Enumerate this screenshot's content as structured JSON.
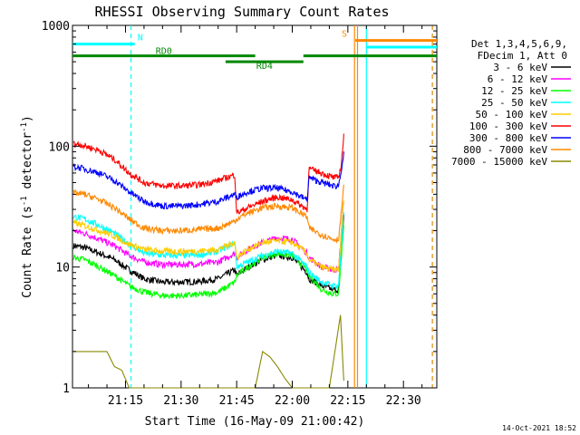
{
  "chart_data": {
    "type": "line",
    "title": "RHESSI Observing Summary Count Rates",
    "xlabel": "Start Time (16-May-09 21:00:42)",
    "ylabel_main": "Count Rate (s",
    "ylabel_sup": "-1",
    "ylabel_mid": " detector",
    "ylabel_sup2": "-1",
    "ylabel_end": ")",
    "yscale": "log",
    "ylim": [
      1,
      1000
    ],
    "xlim_minutes": [
      0.7,
      99.0
    ],
    "x_ticks": [
      {
        "m": 15,
        "label": "21:15"
      },
      {
        "m": 30,
        "label": "21:30"
      },
      {
        "m": 45,
        "label": "21:45"
      },
      {
        "m": 60,
        "label": "22:00"
      },
      {
        "m": 75,
        "label": "22:15"
      },
      {
        "m": 90,
        "label": "22:30"
      }
    ],
    "y_ticks": [
      {
        "v": 1,
        "label": "1"
      },
      {
        "v": 10,
        "label": "10"
      },
      {
        "v": 100,
        "label": "100"
      },
      {
        "v": 1000,
        "label": "1000"
      }
    ],
    "legend_header": [
      "Det 1,3,4,5,6,9,",
      "FDecim 1, Att 0"
    ],
    "legend_placement": "right",
    "timestamp": "14-Oct-2021 18:52",
    "flags": [
      {
        "label": "N",
        "start": 0.7,
        "end": 17.5,
        "level": 700,
        "color": "#00ffff"
      },
      {
        "label": "S",
        "start": 77.0,
        "end": 99.0,
        "level": 750,
        "color": "#ff8800"
      },
      {
        "label": "RD0",
        "start": 0.7,
        "end": 50.0,
        "level": 560,
        "color": "#008800"
      },
      {
        "label": "RD4",
        "start": 42.0,
        "end": 63.0,
        "level": 500,
        "color": "#008800"
      },
      {
        "label": "",
        "start": 63.0,
        "end": 99.0,
        "level": 560,
        "color": "#008800"
      },
      {
        "label": "",
        "start": 80.0,
        "end": 99.0,
        "level": 660,
        "color": "#00ffff"
      }
    ],
    "vlines": [
      {
        "m": 16.5,
        "color": "#00ffff",
        "dashed": true
      },
      {
        "m": 76.8,
        "color": "#ff8800",
        "dashed": false
      },
      {
        "m": 77.6,
        "color": "#ff8800",
        "dashed": false
      },
      {
        "m": 80.0,
        "color": "#00ffff",
        "dashed": false
      },
      {
        "m": 97.8,
        "color": "#00ffff",
        "dashed": true
      },
      {
        "m": 97.8,
        "color": "#ff8800",
        "dashed": true
      }
    ],
    "series": [
      {
        "name": "3 - 6 keV",
        "color": "#000000",
        "x": [
          1,
          4,
          8,
          12,
          16,
          20,
          25,
          30,
          35,
          40,
          44.5,
          45,
          48,
          52,
          56,
          60,
          64,
          64.5,
          68,
          71,
          72.5,
          74
        ],
        "y": [
          15,
          14.5,
          13,
          11.5,
          9.5,
          8,
          7.5,
          7.5,
          7.6,
          8,
          9.5,
          8.5,
          10,
          11.5,
          12.5,
          12,
          9,
          8,
          7,
          6.5,
          6.5,
          30
        ]
      },
      {
        "name": "6 - 12 keV",
        "color": "#ff00ff",
        "x": [
          1,
          4,
          8,
          12,
          16,
          20,
          25,
          30,
          35,
          40,
          44.5,
          45,
          48,
          52,
          56,
          60,
          64,
          64.5,
          68,
          71,
          72.5,
          74
        ],
        "y": [
          20,
          19,
          17,
          15,
          12.5,
          11,
          10.5,
          10.5,
          10.6,
          11,
          13,
          12,
          14,
          16,
          17.5,
          17,
          13,
          12,
          10,
          9.5,
          9.5,
          40
        ]
      },
      {
        "name": "12 - 25 keV",
        "color": "#00ff00",
        "x": [
          1,
          4,
          8,
          12,
          16,
          20,
          25,
          30,
          35,
          40,
          44.5,
          45,
          48,
          52,
          56,
          60,
          64,
          64.5,
          68,
          71,
          72.5,
          74
        ],
        "y": [
          12,
          11.5,
          10,
          8.5,
          7,
          6.2,
          5.8,
          5.8,
          5.9,
          6.2,
          7.5,
          8.5,
          10,
          12,
          13,
          12.5,
          9.5,
          8.5,
          6.5,
          6,
          6,
          25
        ]
      },
      {
        "name": "25 - 50 keV",
        "color": "#00ffff",
        "x": [
          1,
          4,
          8,
          12,
          16,
          20,
          25,
          30,
          35,
          40,
          44.5,
          45,
          48,
          52,
          56,
          60,
          64,
          64.5,
          68,
          71,
          72.5,
          74
        ],
        "y": [
          26,
          25,
          22,
          19,
          15.5,
          13,
          12.5,
          12.5,
          12.6,
          13.5,
          16,
          10,
          11,
          12.5,
          13.5,
          13,
          10,
          9,
          7.5,
          7,
          7,
          32
        ]
      },
      {
        "name": "50 - 100 keV",
        "color": "#ffcc00",
        "x": [
          1,
          4,
          8,
          12,
          16,
          20,
          25,
          30,
          35,
          40,
          44.5,
          45,
          48,
          52,
          56,
          60,
          64,
          64.5,
          68,
          71,
          72.5,
          74
        ],
        "y": [
          23,
          22,
          20,
          18,
          15.5,
          14,
          13.5,
          13.5,
          13.6,
          14,
          16,
          12,
          14,
          16,
          16.5,
          16,
          13,
          11.5,
          10,
          9.5,
          9.5,
          40
        ]
      },
      {
        "name": "100 - 300 keV",
        "color": "#ff0000",
        "x": [
          1,
          3,
          8,
          12,
          16,
          20,
          25,
          30,
          35,
          40,
          44.5,
          45,
          48,
          52,
          56,
          60,
          64,
          64.5,
          68,
          71,
          72.5,
          73.2,
          74
        ],
        "y": [
          105,
          103,
          92,
          78,
          60,
          50,
          47,
          47,
          48,
          52,
          58,
          28,
          31,
          35,
          38,
          36,
          30,
          65,
          60,
          55,
          55,
          70,
          130
        ]
      },
      {
        "name": "300 - 800 keV",
        "color": "#0000ff",
        "x": [
          1,
          3,
          8,
          12,
          16,
          20,
          25,
          30,
          35,
          40,
          44.5,
          45,
          48,
          52,
          56,
          60,
          64,
          64.5,
          68,
          71,
          72.5,
          74
        ],
        "y": [
          68,
          66,
          60,
          52,
          42,
          35,
          32,
          32,
          33,
          35,
          40,
          38,
          42,
          45,
          45,
          42,
          36,
          55,
          50,
          47,
          47,
          90
        ]
      },
      {
        "name": "800 - 7000 keV",
        "color": "#ff8800",
        "x": [
          1,
          4,
          8,
          12,
          16,
          20,
          25,
          30,
          35,
          40,
          44.5,
          45,
          48,
          52,
          56,
          60,
          64,
          64.5,
          68,
          71,
          72.5,
          74
        ],
        "y": [
          41,
          40,
          36,
          31,
          25,
          21,
          20,
          20,
          20.5,
          21,
          24,
          25,
          28,
          31,
          32,
          31,
          26,
          21,
          18.5,
          17,
          17,
          50
        ]
      },
      {
        "name": "7000 - 15000 keV",
        "color": "#888800",
        "x": [
          1,
          3,
          6,
          8,
          10,
          12,
          14,
          16,
          20,
          30,
          40,
          50,
          52,
          54,
          56,
          58,
          60,
          70,
          73,
          73.5,
          74
        ],
        "y": [
          2,
          2,
          2,
          2,
          2,
          1.5,
          1.4,
          1,
          1,
          1,
          1,
          1,
          2,
          1.8,
          1.5,
          1.2,
          1,
          1,
          4,
          2,
          1
        ]
      }
    ]
  }
}
